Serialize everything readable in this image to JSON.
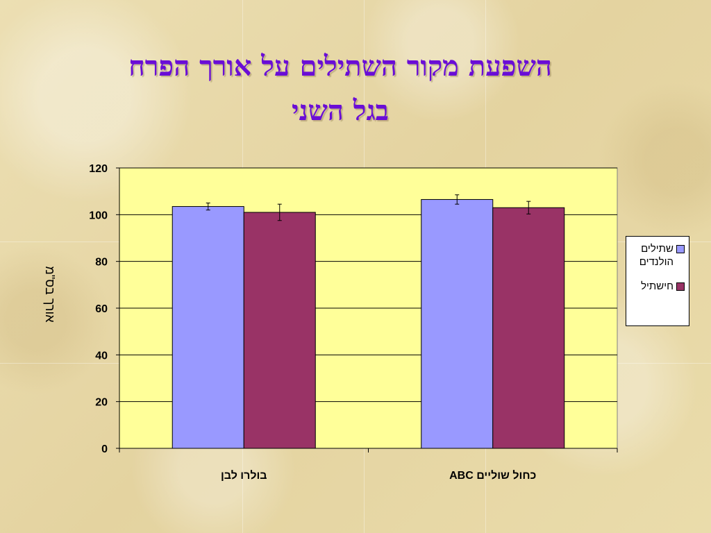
{
  "title_lines": [
    "השפעת מקור השתילים על אורך הפרח",
    "בגל השני"
  ],
  "chart_data": {
    "type": "bar",
    "categories": [
      "בולרו לבן",
      "כחול שוליים ABC"
    ],
    "series": [
      {
        "name": "שתילים הולנדים",
        "values": [
          103.5,
          106.5
        ],
        "errors": [
          1.5,
          2.0
        ],
        "color": "#9999ff"
      },
      {
        "name": "חישתיל",
        "values": [
          101,
          103
        ],
        "errors": [
          3.5,
          2.7
        ],
        "color": "#993366"
      }
    ],
    "ylabel": "אורך בס\"מ",
    "ylim": [
      0,
      120
    ],
    "yticks": [
      0,
      20,
      40,
      60,
      80,
      100,
      120
    ],
    "grid": true,
    "legend_position": "right",
    "plot_background": "#ffff99"
  }
}
